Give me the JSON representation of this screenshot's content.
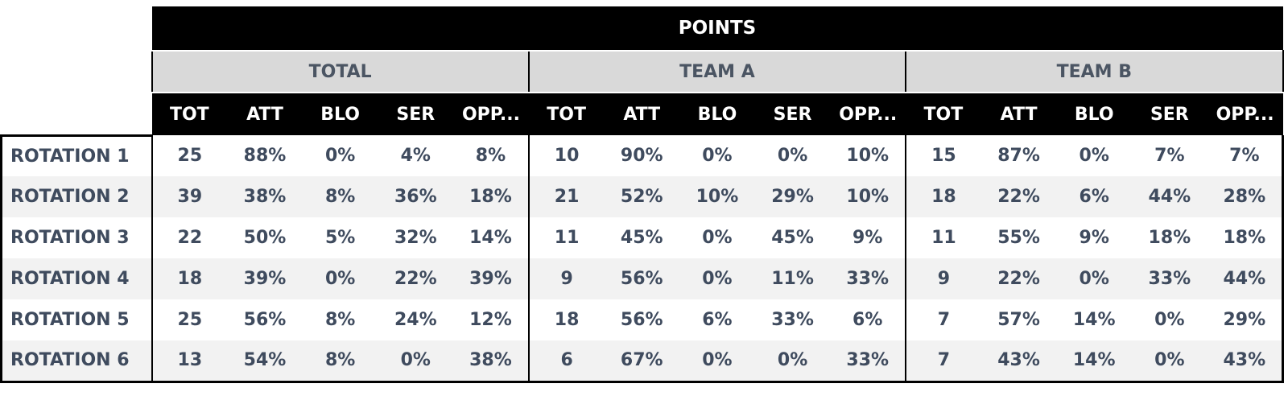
{
  "table": {
    "title": "POINTS",
    "groups": [
      "TOTAL",
      "TEAM A",
      "TEAM B"
    ],
    "columns": [
      "TOT",
      "ATT",
      "BLO",
      "SER",
      "OPP..."
    ],
    "rows": [
      {
        "label": "ROTATION 1",
        "values": [
          "25",
          "88%",
          "0%",
          "4%",
          "8%",
          "10",
          "90%",
          "0%",
          "0%",
          "10%",
          "15",
          "87%",
          "0%",
          "7%",
          "7%"
        ]
      },
      {
        "label": "ROTATION 2",
        "values": [
          "39",
          "38%",
          "8%",
          "36%",
          "18%",
          "21",
          "52%",
          "10%",
          "29%",
          "10%",
          "18",
          "22%",
          "6%",
          "44%",
          "28%"
        ]
      },
      {
        "label": "ROTATION 3",
        "values": [
          "22",
          "50%",
          "5%",
          "32%",
          "14%",
          "11",
          "45%",
          "0%",
          "45%",
          "9%",
          "11",
          "55%",
          "9%",
          "18%",
          "18%"
        ]
      },
      {
        "label": "ROTATION 4",
        "values": [
          "18",
          "39%",
          "0%",
          "22%",
          "39%",
          "9",
          "56%",
          "0%",
          "11%",
          "33%",
          "9",
          "22%",
          "0%",
          "33%",
          "44%"
        ]
      },
      {
        "label": "ROTATION 5",
        "values": [
          "25",
          "56%",
          "8%",
          "24%",
          "12%",
          "18",
          "56%",
          "6%",
          "33%",
          "6%",
          "7",
          "57%",
          "14%",
          "0%",
          "29%"
        ]
      },
      {
        "label": "ROTATION 6",
        "values": [
          "13",
          "54%",
          "8%",
          "0%",
          "38%",
          "6",
          "67%",
          "0%",
          "0%",
          "33%",
          "7",
          "43%",
          "14%",
          "0%",
          "43%"
        ]
      }
    ]
  },
  "colors": {
    "header_bg": "#000000",
    "group_bg": "#d9d9d9",
    "text": "#3f4b5e",
    "stripe": "#f2f2f2"
  }
}
